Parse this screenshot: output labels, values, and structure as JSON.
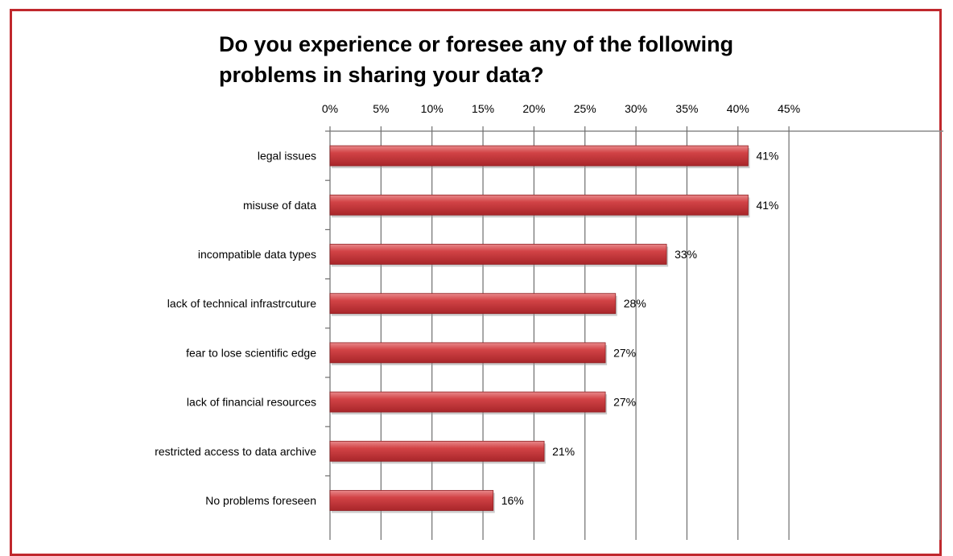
{
  "chart_data": {
    "type": "bar",
    "orientation": "horizontal",
    "title_lines": [
      "Do you experience or foresee any of the following",
      "problems in sharing your data?"
    ],
    "categories": [
      "legal issues",
      "misuse of data",
      "incompatible data types",
      "lack of technical infrastrcuture",
      "fear to lose scientific edge",
      "lack of financial resources",
      "restricted access to data archive",
      "No problems foreseen"
    ],
    "values": [
      41,
      41,
      33,
      28,
      27,
      27,
      21,
      16
    ],
    "data_labels": [
      "41%",
      "41%",
      "33%",
      "28%",
      "27%",
      "27%",
      "21%",
      "16%"
    ],
    "x_ticks": [
      0,
      5,
      10,
      15,
      20,
      25,
      30,
      35,
      40,
      45
    ],
    "x_tick_labels": [
      "0%",
      "5%",
      "10%",
      "15%",
      "20%",
      "25%",
      "30%",
      "35%",
      "40%",
      "45%"
    ],
    "xlim": [
      0,
      45
    ],
    "x_axis_position": "top",
    "grid": true,
    "legend": "none",
    "bar_color": "#c8383c",
    "frame_color": "#c0282d"
  }
}
